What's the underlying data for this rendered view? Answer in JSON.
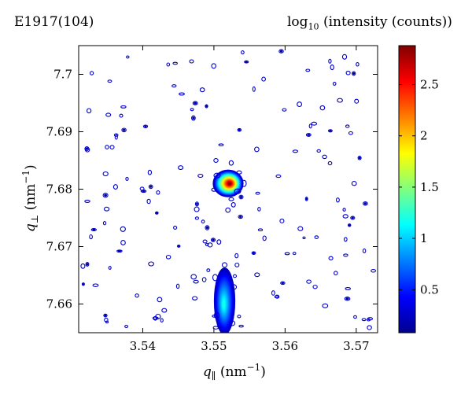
{
  "chart_data": {
    "type": "heatmap",
    "title": "E1917(104)",
    "colorbar_label_prefix": "log",
    "colorbar_label_sub": "10",
    "colorbar_label_suffix": " (intensity (counts))",
    "xlabel_symbol": "q",
    "xlabel_sub": "∥",
    "xlabel_unit": " (nm",
    "xlabel_unit_sup": "−1",
    "xlabel_unit_close": ")",
    "ylabel_symbol": "q",
    "ylabel_sub": "⊥",
    "ylabel_unit": " (nm",
    "ylabel_unit_sup": "−1",
    "ylabel_unit_close": ")",
    "xlim": [
      3.531,
      3.573
    ],
    "ylim": [
      7.655,
      7.705
    ],
    "x_ticks": [
      3.54,
      3.55,
      3.56,
      3.57
    ],
    "y_ticks": [
      7.66,
      7.67,
      7.68,
      7.69,
      7.7
    ],
    "x_tick_labels": [
      "3.54",
      "3.55",
      "3.56",
      "3.57"
    ],
    "y_tick_labels": [
      "7.66",
      "7.67",
      "7.68",
      "7.69",
      "7.7"
    ],
    "colorbar_range": [
      0.08,
      2.88
    ],
    "colorbar_ticks": [
      0.5,
      1,
      1.5,
      2,
      2.5
    ],
    "colorbar_tick_labels": [
      "0.5",
      "1",
      "1.5",
      "2",
      "2.5"
    ],
    "colormap": "jet",
    "peaks": [
      {
        "x": 3.552,
        "y": 7.681,
        "peak_value": 2.85
      },
      {
        "x": 3.5515,
        "y": 7.6605,
        "peak_value": 1.2
      }
    ]
  }
}
